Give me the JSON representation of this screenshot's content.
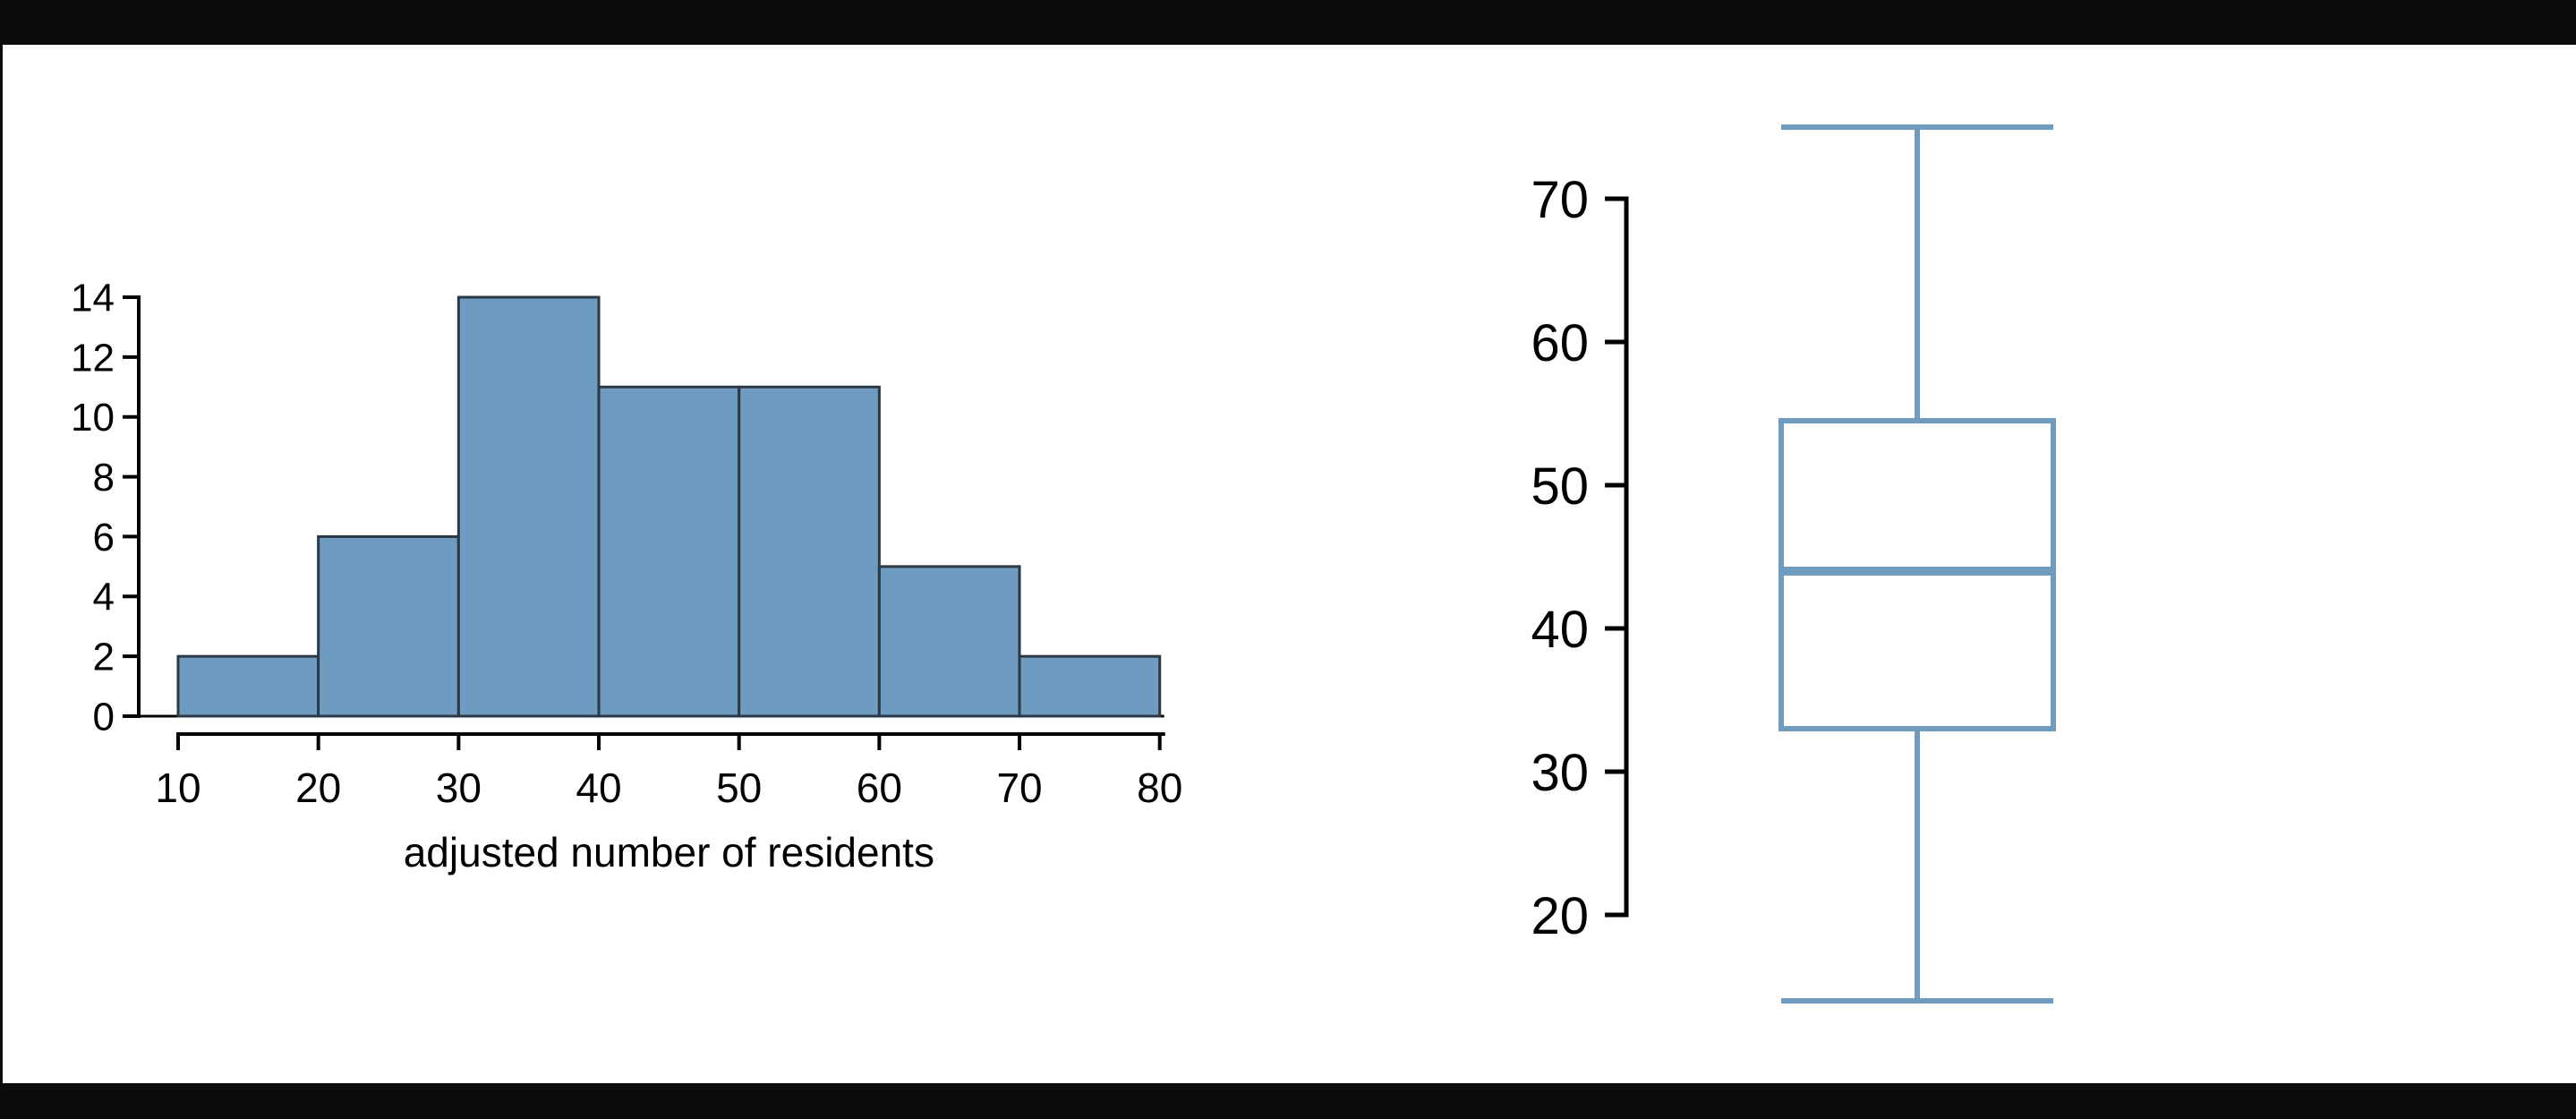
{
  "page": {
    "background": "#0c0c0c",
    "canvas_background": "#ffffff",
    "text_color": "#000000"
  },
  "chart_data": [
    {
      "type": "bar",
      "subtype": "histogram",
      "title": "",
      "xlabel": "adjusted number of residents",
      "ylabel": "",
      "bin_edges": [
        10,
        20,
        30,
        40,
        50,
        60,
        70,
        80
      ],
      "counts": [
        2,
        6,
        14,
        11,
        11,
        5,
        2
      ],
      "x_ticks": [
        "10",
        "20",
        "30",
        "40",
        "50",
        "60",
        "70",
        "80"
      ],
      "y_ticks": [
        "0",
        "2",
        "4",
        "6",
        "8",
        "10",
        "12",
        "14"
      ],
      "xlim": [
        10,
        80
      ],
      "ylim": [
        0,
        14
      ],
      "grid": false,
      "legend": false,
      "bar_fill": "#6f9bc0",
      "bar_border": "#2b3846",
      "axis_color": "#000000"
    },
    {
      "type": "boxplot",
      "orientation": "vertical",
      "title": "",
      "xlabel": "",
      "ylabel": "",
      "y_ticks": [
        "20",
        "30",
        "40",
        "50",
        "60",
        "70"
      ],
      "axis_range": [
        20,
        70
      ],
      "stats": {
        "whisker_low": 14,
        "q1": 33,
        "median": 44,
        "q3": 54.5,
        "whisker_high": 75
      },
      "grid": false,
      "legend": false,
      "line_color": "#6f9cbe",
      "axis_color": "#000000"
    }
  ]
}
